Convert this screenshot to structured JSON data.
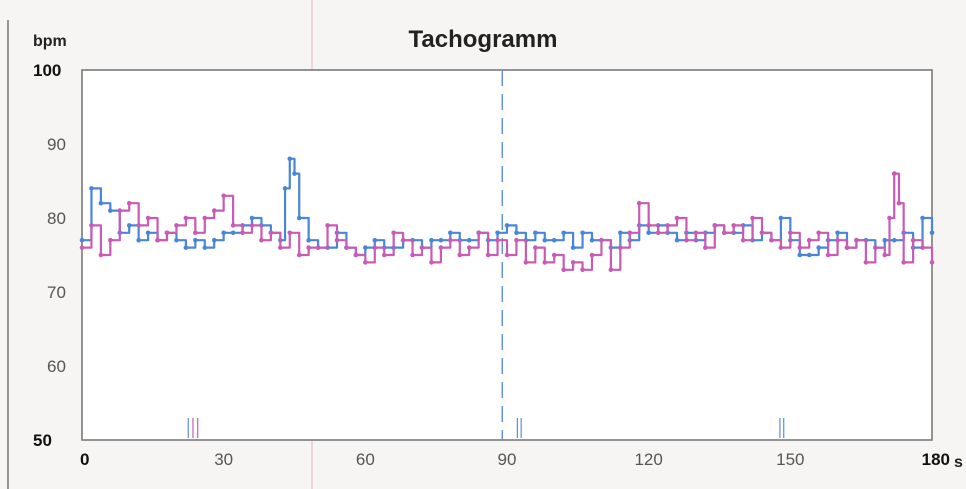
{
  "chart_data": {
    "type": "line",
    "title": "Tachogramm",
    "ylabel": "bpm",
    "xunit": "s",
    "xlim": [
      0,
      180
    ],
    "ylim": [
      50,
      100
    ],
    "x_ticks": [
      0,
      30,
      60,
      90,
      120,
      150,
      180
    ],
    "y_ticks": [
      100,
      90,
      80,
      70,
      60,
      50
    ],
    "x_tick_labels": [
      "0",
      "30",
      "60",
      "90",
      "120",
      "150",
      "180"
    ],
    "y_tick_labels": [
      "100",
      "90",
      "80",
      "70",
      "60",
      "50"
    ],
    "bold_x_ticks": [
      "0",
      "180"
    ],
    "bold_y_ticks": [
      "100",
      "50"
    ],
    "grid": false,
    "legend": "none",
    "vertical_marker_x": 89,
    "event_markers": [
      {
        "x": 22.5,
        "color": "#5b8ede"
      },
      {
        "x": 23.5,
        "color": "#c85cb4"
      },
      {
        "x": 24.5,
        "color": "#c85cb4"
      },
      {
        "x": 92.2,
        "color": "#5b8ede"
      },
      {
        "x": 93.0,
        "color": "#5b8ede"
      },
      {
        "x": 147.8,
        "color": "#5b8ede"
      },
      {
        "x": 148.6,
        "color": "#5b8ede"
      }
    ],
    "series": [
      {
        "color": "#4a86d8",
        "x": [
          0,
          2,
          4,
          6,
          8,
          10,
          12,
          14,
          16,
          18,
          20,
          22,
          24,
          26,
          28,
          30,
          32,
          34,
          36,
          38,
          40,
          42,
          43,
          44,
          45,
          46,
          48,
          50,
          52,
          54,
          56,
          58,
          60,
          62,
          64,
          66,
          68,
          70,
          72,
          74,
          76,
          78,
          80,
          82,
          84,
          86,
          88,
          90,
          92,
          94,
          96,
          98,
          100,
          102,
          104,
          106,
          108,
          110,
          112,
          114,
          116,
          118,
          120,
          122,
          124,
          126,
          128,
          130,
          132,
          134,
          136,
          138,
          140,
          142,
          144,
          146,
          148,
          150,
          152,
          154,
          156,
          158,
          160,
          162,
          164,
          166,
          168,
          170,
          172,
          174,
          176,
          178,
          180
        ],
        "y": [
          77,
          84,
          82,
          81,
          78,
          79,
          77,
          78,
          77,
          78,
          77,
          76,
          77,
          76,
          77,
          78,
          78,
          79,
          80,
          79,
          78,
          77,
          84,
          88,
          86,
          80,
          77,
          76,
          76,
          78,
          76,
          75,
          76,
          77,
          76,
          76,
          77,
          77,
          76,
          77,
          77,
          78,
          77,
          77,
          78,
          77,
          78,
          79,
          78,
          77,
          78,
          77,
          77,
          78,
          76,
          78,
          77,
          77,
          76,
          78,
          77,
          79,
          78,
          79,
          78,
          77,
          78,
          77,
          78,
          79,
          78,
          78,
          79,
          77,
          78,
          77,
          80,
          77,
          75,
          75,
          76,
          77,
          78,
          76,
          77,
          77,
          76,
          77,
          77,
          78,
          76,
          80,
          78
        ]
      },
      {
        "color": "#c85cb4",
        "x": [
          0,
          2,
          4,
          6,
          8,
          10,
          12,
          14,
          16,
          18,
          20,
          22,
          24,
          26,
          28,
          30,
          32,
          34,
          36,
          38,
          40,
          42,
          44,
          46,
          48,
          50,
          52,
          54,
          56,
          58,
          60,
          62,
          64,
          66,
          68,
          70,
          72,
          74,
          76,
          78,
          80,
          82,
          84,
          86,
          88,
          90,
          92,
          94,
          96,
          98,
          100,
          102,
          104,
          106,
          108,
          110,
          112,
          114,
          116,
          118,
          120,
          122,
          124,
          126,
          128,
          130,
          132,
          134,
          136,
          138,
          140,
          142,
          144,
          146,
          148,
          150,
          152,
          154,
          156,
          158,
          160,
          162,
          164,
          166,
          168,
          170,
          171,
          172,
          173,
          174,
          176,
          178,
          180
        ],
        "y": [
          76,
          79,
          75,
          77,
          81,
          82,
          79,
          80,
          77,
          78,
          79,
          80,
          78,
          80,
          81,
          83,
          79,
          78,
          79,
          77,
          78,
          76,
          78,
          75,
          76,
          76,
          79,
          77,
          76,
          75,
          74,
          76,
          75,
          78,
          77,
          75,
          76,
          74,
          76,
          77,
          75,
          76,
          78,
          75,
          77,
          75,
          77,
          74,
          76,
          74,
          75,
          73,
          74,
          73,
          75,
          77,
          73,
          76,
          78,
          82,
          79,
          78,
          79,
          80,
          77,
          78,
          76,
          79,
          78,
          79,
          77,
          80,
          78,
          77,
          76,
          78,
          76,
          77,
          78,
          75,
          77,
          76,
          77,
          74,
          76,
          75,
          80,
          86,
          82,
          74,
          77,
          76,
          74
        ]
      }
    ]
  }
}
